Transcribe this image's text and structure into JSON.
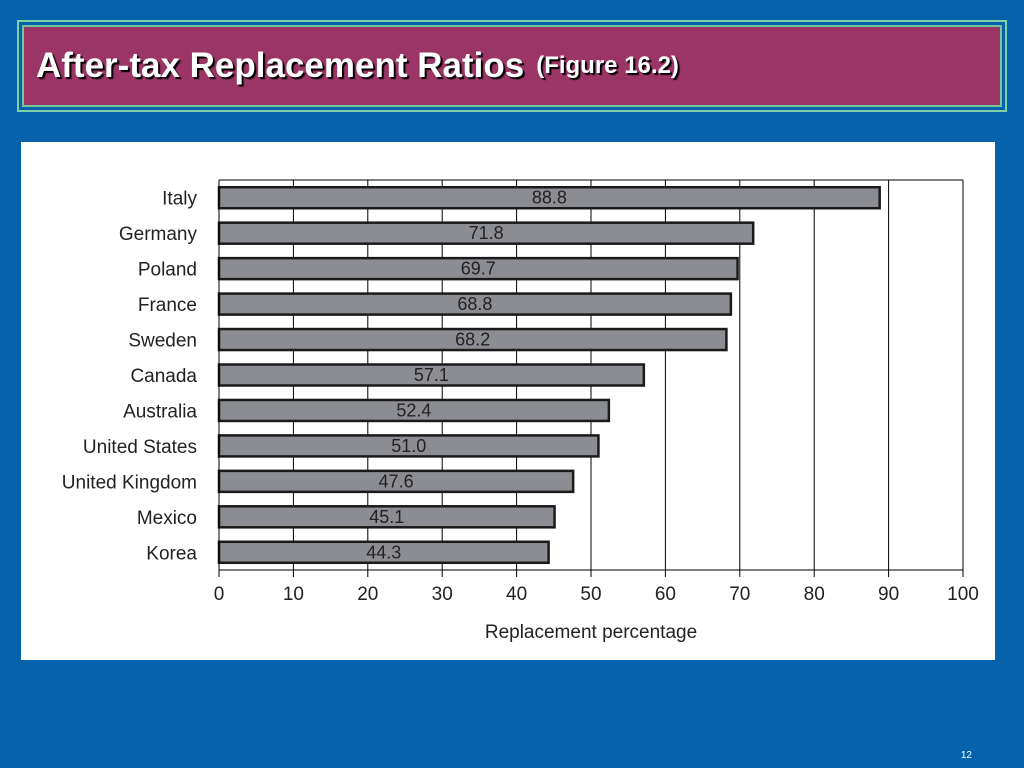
{
  "slide": {
    "title": "After-tax Replacement Ratios",
    "subtitle": "(Figure 16.2)",
    "page_number": "12"
  },
  "colors": {
    "background": "#0663ab",
    "title_bar": "#9b3565",
    "bar_fill": "#8c8d92",
    "bar_stroke": "#1a1a1a"
  },
  "chart_data": {
    "type": "bar",
    "orientation": "horizontal",
    "categories": [
      "Italy",
      "Germany",
      "Poland",
      "France",
      "Sweden",
      "Canada",
      "Australia",
      "United States",
      "United Kingdom",
      "Mexico",
      "Korea"
    ],
    "values": [
      88.8,
      71.8,
      69.7,
      68.8,
      68.2,
      57.1,
      52.4,
      51.0,
      47.6,
      45.1,
      44.3
    ],
    "value_labels": [
      "88.8",
      "71.8",
      "69.7",
      "68.8",
      "68.2",
      "57.1",
      "52.4",
      "51.0",
      "47.6",
      "45.1",
      "44.3"
    ],
    "title": "",
    "xlabel": "Replacement percentage",
    "ylabel": "",
    "xlim": [
      0,
      100
    ],
    "xticks": [
      0,
      10,
      20,
      30,
      40,
      50,
      60,
      70,
      80,
      90,
      100
    ],
    "xtick_labels": [
      "0",
      "10",
      "20",
      "30",
      "40",
      "50",
      "60",
      "70",
      "80",
      "90",
      "100"
    ],
    "grid": "vertical",
    "legend": "none"
  }
}
